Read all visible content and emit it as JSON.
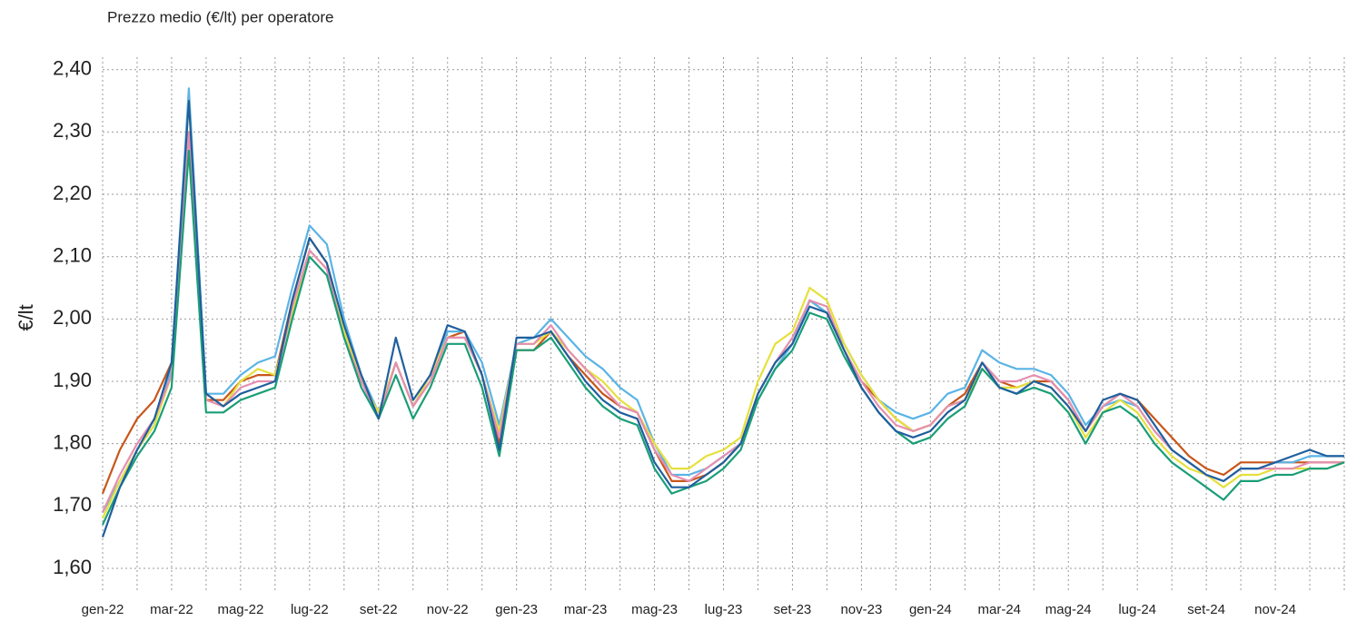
{
  "chart_data": {
    "type": "line",
    "title": "Prezzo medio (€/lt) per operatore",
    "y_label": "€/lt",
    "categories": [
      "gen-22",
      null,
      null,
      null,
      "mar-22",
      null,
      null,
      null,
      "mag-22",
      null,
      null,
      null,
      "lug-22",
      null,
      null,
      null,
      "set-22",
      null,
      null,
      null,
      "nov-22",
      null,
      null,
      null,
      "gen-23",
      null,
      null,
      null,
      "mar-23",
      null,
      null,
      null,
      "mag-23",
      null,
      null,
      null,
      "lug-23",
      null,
      null,
      null,
      "set-23",
      null,
      null,
      null,
      "nov-23",
      null,
      null,
      null,
      "gen-24",
      null,
      null,
      null,
      "mar-24",
      null,
      null,
      null,
      "mag-24",
      null,
      null,
      null,
      "lug-24",
      null,
      null,
      null,
      "set-24",
      null,
      null,
      null,
      "nov-24",
      null,
      null,
      null,
      null
    ],
    "ylim": [
      1.565,
      2.42
    ],
    "yticks": [
      {
        "value": 1.6,
        "label": "1,60"
      },
      {
        "value": 1.7,
        "label": "1,70"
      },
      {
        "value": 1.8,
        "label": "1,80"
      },
      {
        "value": 1.9,
        "label": "1,90"
      },
      {
        "value": 2.0,
        "label": "2,00"
      },
      {
        "value": 2.1,
        "label": "2,10"
      },
      {
        "value": 2.2,
        "label": "2,20"
      },
      {
        "value": 2.3,
        "label": "2,30"
      },
      {
        "value": 2.4,
        "label": "2,40"
      }
    ],
    "grid": true,
    "series": [
      {
        "color": "#c8561a",
        "values": [
          1.72,
          1.79,
          1.84,
          1.87,
          1.93,
          2.3,
          1.87,
          1.87,
          1.9,
          1.91,
          1.91,
          2.03,
          2.13,
          2.09,
          1.98,
          1.9,
          1.85,
          1.93,
          1.86,
          1.9,
          1.97,
          1.98,
          1.91,
          1.8,
          1.95,
          1.95,
          1.98,
          1.94,
          1.91,
          1.88,
          1.86,
          1.85,
          1.79,
          1.74,
          1.74,
          1.75,
          1.77,
          1.8,
          1.88,
          1.93,
          1.96,
          2.03,
          2.01,
          1.95,
          1.9,
          1.87,
          1.84,
          1.82,
          1.83,
          1.86,
          1.88,
          1.93,
          1.9,
          1.89,
          1.9,
          1.9,
          1.87,
          1.82,
          1.86,
          1.88,
          1.87,
          1.84,
          1.81,
          1.78,
          1.76,
          1.75,
          1.77,
          1.77,
          1.77,
          1.77,
          1.77,
          1.77,
          1.77
        ]
      },
      {
        "color": "#5ab4e5",
        "values": [
          1.69,
          1.74,
          1.79,
          1.83,
          1.92,
          2.37,
          1.88,
          1.88,
          1.91,
          1.93,
          1.94,
          2.05,
          2.15,
          2.12,
          2.0,
          1.91,
          1.85,
          1.93,
          1.86,
          1.91,
          1.98,
          1.98,
          1.93,
          1.83,
          1.96,
          1.97,
          2.0,
          1.97,
          1.94,
          1.92,
          1.89,
          1.87,
          1.8,
          1.75,
          1.75,
          1.76,
          1.78,
          1.8,
          1.87,
          1.92,
          1.96,
          2.03,
          2.01,
          1.96,
          1.91,
          1.87,
          1.85,
          1.84,
          1.85,
          1.88,
          1.89,
          1.95,
          1.93,
          1.92,
          1.92,
          1.91,
          1.88,
          1.83,
          1.86,
          1.87,
          1.86,
          1.82,
          1.79,
          1.77,
          1.75,
          1.74,
          1.76,
          1.76,
          1.77,
          1.77,
          1.78,
          1.78,
          1.78
        ]
      },
      {
        "color": "#e6e03c",
        "values": [
          1.68,
          1.74,
          1.79,
          1.83,
          1.91,
          2.35,
          1.87,
          1.86,
          1.9,
          1.92,
          1.91,
          2.01,
          2.11,
          2.08,
          1.98,
          1.9,
          1.85,
          1.93,
          1.86,
          1.91,
          1.97,
          1.97,
          1.91,
          1.82,
          1.96,
          1.96,
          1.98,
          1.95,
          1.92,
          1.9,
          1.87,
          1.85,
          1.8,
          1.76,
          1.76,
          1.78,
          1.79,
          1.81,
          1.9,
          1.96,
          1.98,
          2.05,
          2.03,
          1.96,
          1.91,
          1.87,
          1.84,
          1.82,
          1.83,
          1.86,
          1.87,
          1.92,
          1.89,
          1.89,
          1.9,
          1.89,
          1.86,
          1.81,
          1.85,
          1.87,
          1.85,
          1.81,
          1.78,
          1.76,
          1.75,
          1.73,
          1.75,
          1.75,
          1.76,
          1.76,
          1.76,
          1.76,
          1.77
        ]
      },
      {
        "color": "#e58fb0",
        "values": [
          1.69,
          1.75,
          1.8,
          1.84,
          1.91,
          2.3,
          1.87,
          1.86,
          1.89,
          1.9,
          1.9,
          2.02,
          2.11,
          2.08,
          1.97,
          1.9,
          1.84,
          1.93,
          1.86,
          1.9,
          1.97,
          1.97,
          1.91,
          1.81,
          1.96,
          1.96,
          1.99,
          1.95,
          1.92,
          1.89,
          1.86,
          1.85,
          1.79,
          1.75,
          1.74,
          1.76,
          1.78,
          1.8,
          1.88,
          1.93,
          1.97,
          2.03,
          2.02,
          1.95,
          1.9,
          1.86,
          1.83,
          1.82,
          1.83,
          1.86,
          1.87,
          1.93,
          1.9,
          1.9,
          1.91,
          1.9,
          1.87,
          1.82,
          1.86,
          1.88,
          1.86,
          1.82,
          1.79,
          1.77,
          1.75,
          1.74,
          1.76,
          1.76,
          1.76,
          1.76,
          1.77,
          1.77,
          1.77
        ]
      },
      {
        "color": "#1a9e77",
        "values": [
          1.67,
          1.73,
          1.78,
          1.82,
          1.89,
          2.27,
          1.85,
          1.85,
          1.87,
          1.88,
          1.89,
          2.0,
          2.1,
          2.07,
          1.97,
          1.89,
          1.84,
          1.91,
          1.84,
          1.89,
          1.96,
          1.96,
          1.89,
          1.78,
          1.95,
          1.95,
          1.97,
          1.93,
          1.89,
          1.86,
          1.84,
          1.83,
          1.76,
          1.72,
          1.73,
          1.74,
          1.76,
          1.79,
          1.87,
          1.92,
          1.95,
          2.01,
          2.0,
          1.94,
          1.89,
          1.85,
          1.82,
          1.8,
          1.81,
          1.84,
          1.86,
          1.92,
          1.89,
          1.88,
          1.89,
          1.88,
          1.85,
          1.8,
          1.85,
          1.86,
          1.84,
          1.8,
          1.77,
          1.75,
          1.73,
          1.71,
          1.74,
          1.74,
          1.75,
          1.75,
          1.76,
          1.76,
          1.77
        ]
      },
      {
        "color": "#1f5f9e",
        "values": [
          1.65,
          1.73,
          1.79,
          1.84,
          1.93,
          2.35,
          1.88,
          1.86,
          1.88,
          1.89,
          1.9,
          2.03,
          2.13,
          2.09,
          1.99,
          1.91,
          1.84,
          1.97,
          1.87,
          1.91,
          1.99,
          1.98,
          1.91,
          1.79,
          1.97,
          1.97,
          1.98,
          1.94,
          1.9,
          1.87,
          1.85,
          1.84,
          1.77,
          1.73,
          1.73,
          1.75,
          1.77,
          1.8,
          1.88,
          1.93,
          1.96,
          2.02,
          2.01,
          1.95,
          1.89,
          1.85,
          1.82,
          1.81,
          1.82,
          1.85,
          1.87,
          1.93,
          1.89,
          1.88,
          1.9,
          1.89,
          1.86,
          1.82,
          1.87,
          1.88,
          1.87,
          1.83,
          1.79,
          1.77,
          1.75,
          1.74,
          1.76,
          1.76,
          1.77,
          1.78,
          1.79,
          1.78,
          1.78
        ]
      }
    ]
  }
}
